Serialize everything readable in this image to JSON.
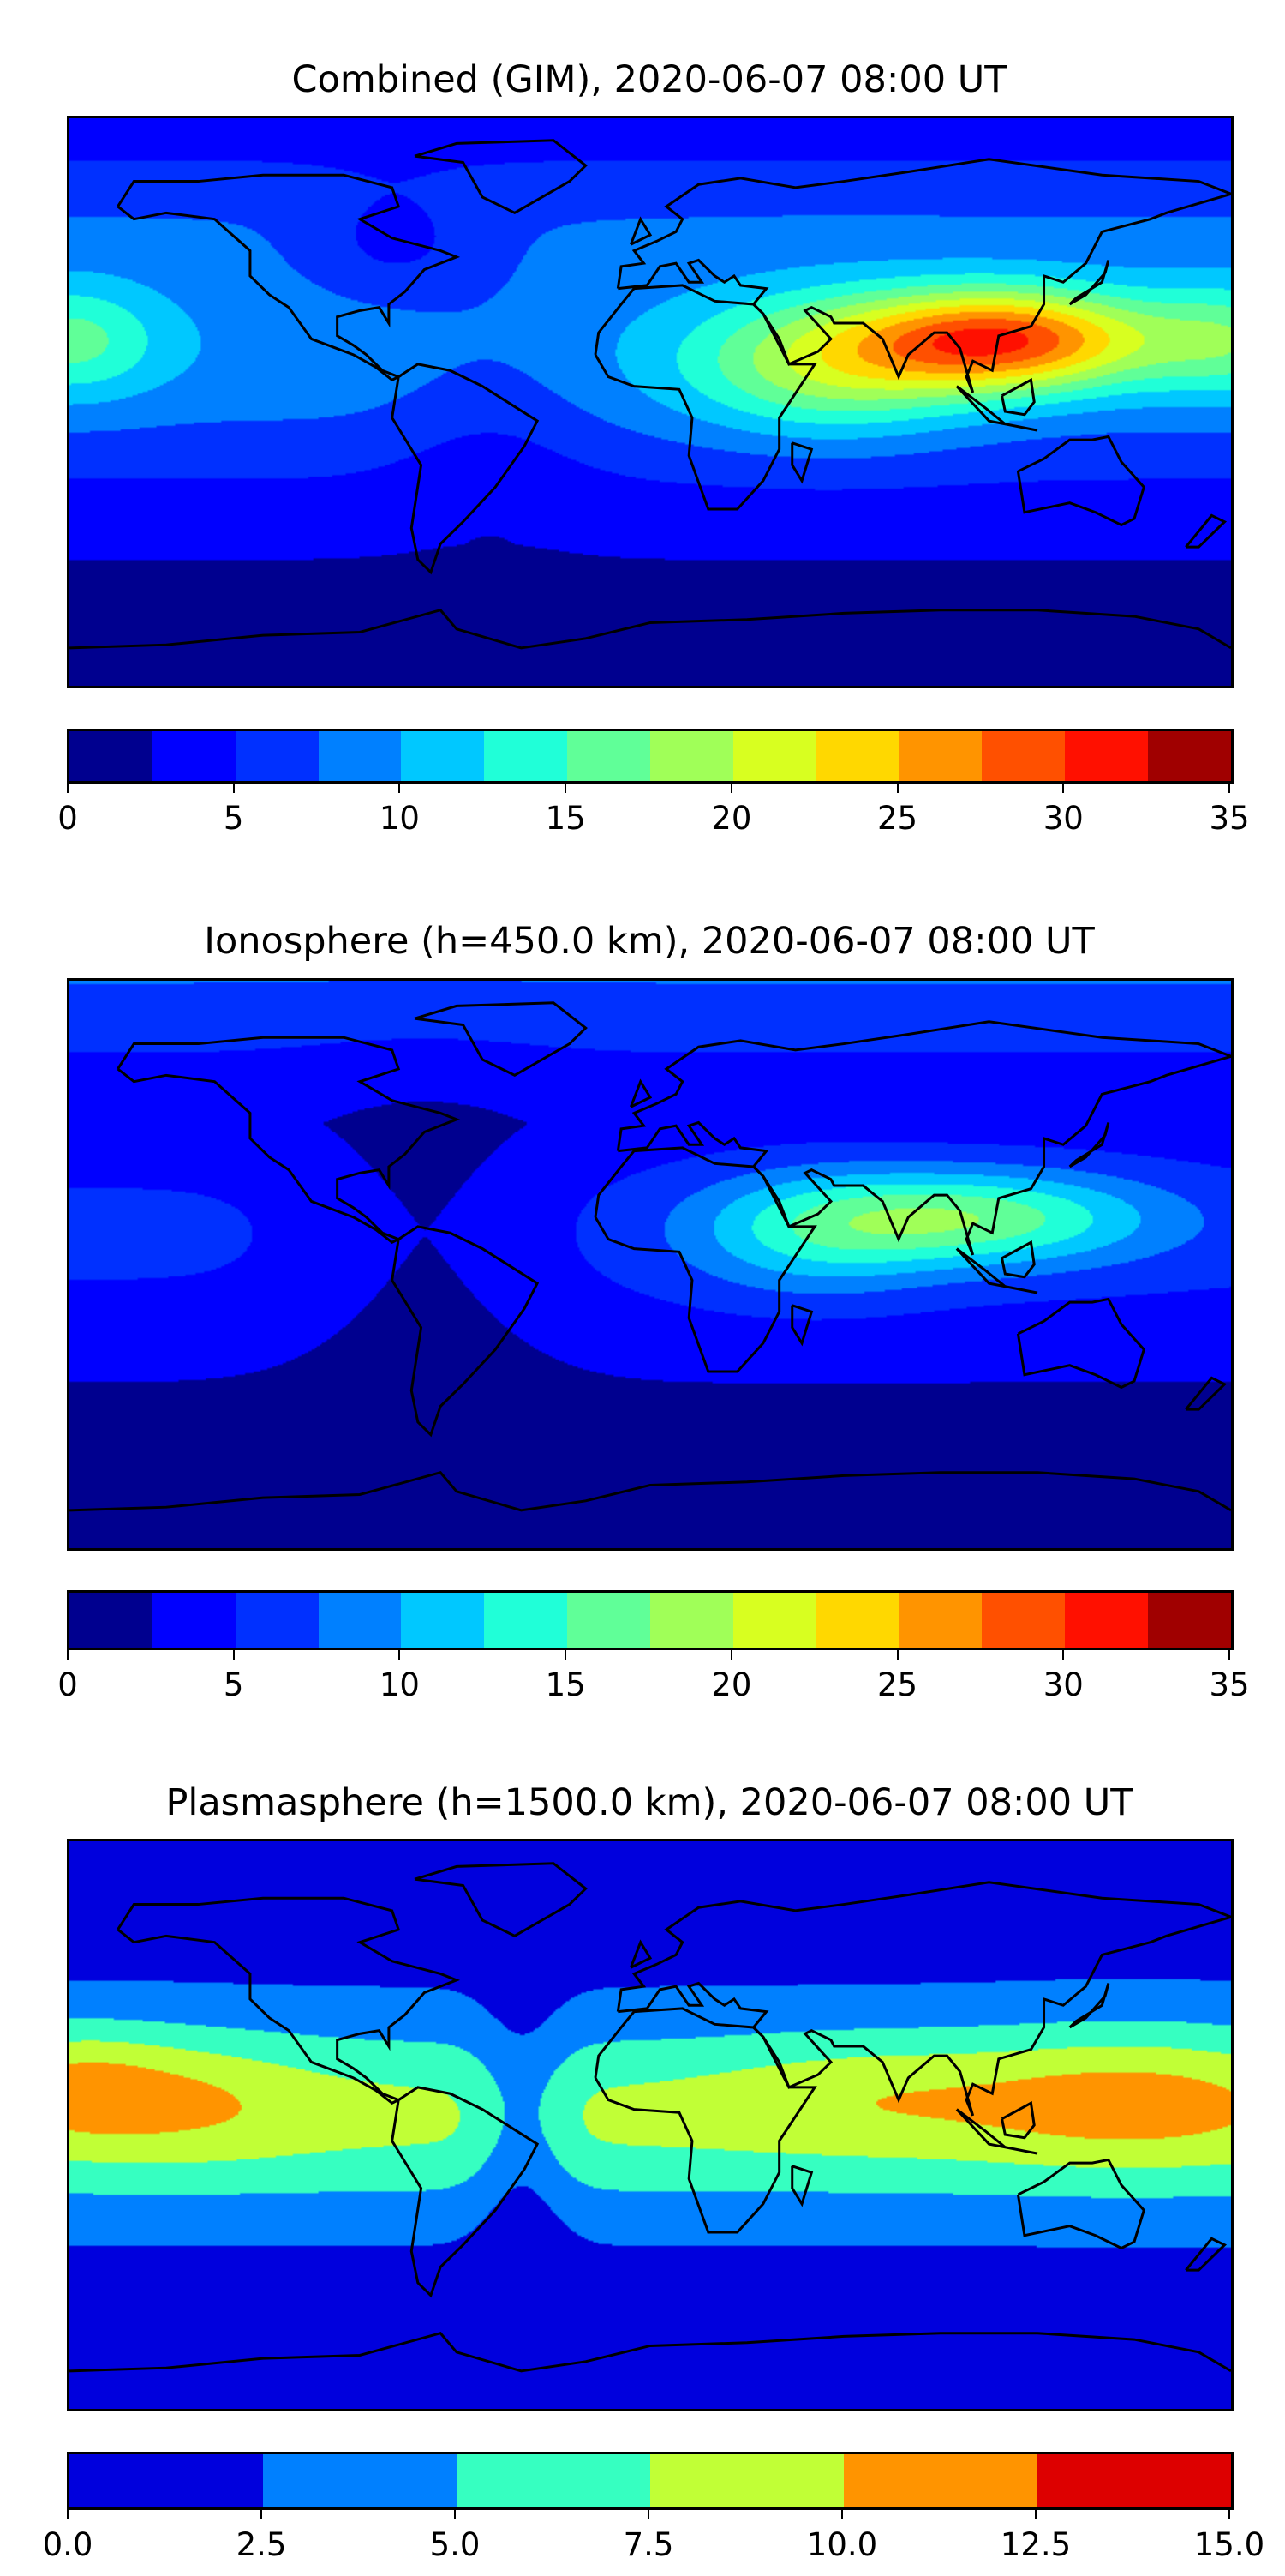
{
  "panels": [
    {
      "title": "Combined (GIM), 2020-06-07 08:00 UT",
      "levels": [
        0,
        2.5,
        5,
        7.5,
        10,
        12.5,
        15,
        17.5,
        20,
        22.5,
        25,
        27.5,
        30,
        32.5,
        35
      ],
      "colors": [
        "#00008f",
        "#0000ff",
        "#0030ff",
        "#0080ff",
        "#00c8ff",
        "#20ffd8",
        "#60ff98",
        "#a0ff58",
        "#d8ff20",
        "#ffd800",
        "#ff9400",
        "#ff5000",
        "#ff1000",
        "#a00000"
      ],
      "tick_labels": [
        "0",
        "5",
        "10",
        "15",
        "20",
        "25",
        "30",
        "35"
      ],
      "tick_values": [
        0,
        5,
        10,
        15,
        20,
        25,
        30,
        35
      ],
      "range": [
        0,
        35
      ]
    },
    {
      "title": "Ionosphere  (h=450.0 km), 2020-06-07 08:00 UT",
      "levels": [
        0,
        2.5,
        5,
        7.5,
        10,
        12.5,
        15,
        17.5,
        20,
        22.5,
        25,
        27.5,
        30,
        32.5,
        35
      ],
      "colors": [
        "#00008f",
        "#0000ff",
        "#0030ff",
        "#0080ff",
        "#00c8ff",
        "#20ffd8",
        "#60ff98",
        "#a0ff58",
        "#d8ff20",
        "#ffd800",
        "#ff9400",
        "#ff5000",
        "#ff1000",
        "#a00000"
      ],
      "tick_labels": [
        "0",
        "5",
        "10",
        "15",
        "20",
        "25",
        "30",
        "35"
      ],
      "tick_values": [
        0,
        5,
        10,
        15,
        20,
        25,
        30,
        35
      ],
      "range": [
        0,
        35
      ]
    },
    {
      "title": "Plasmasphere (h=1500.0 km), 2020-06-07 08:00 UT",
      "levels": [
        0,
        2.5,
        5,
        7.5,
        10,
        12.5,
        15
      ],
      "colors": [
        "#0000dd",
        "#0080ff",
        "#36ffc1",
        "#c1ff36",
        "#ff9400",
        "#dd0000"
      ],
      "tick_labels": [
        "0.0",
        "2.5",
        "5.0",
        "7.5",
        "10.0",
        "12.5",
        "15.0"
      ],
      "tick_values": [
        0,
        2.5,
        5,
        7.5,
        10,
        12.5,
        15
      ],
      "range": [
        0,
        15
      ]
    }
  ]
}
